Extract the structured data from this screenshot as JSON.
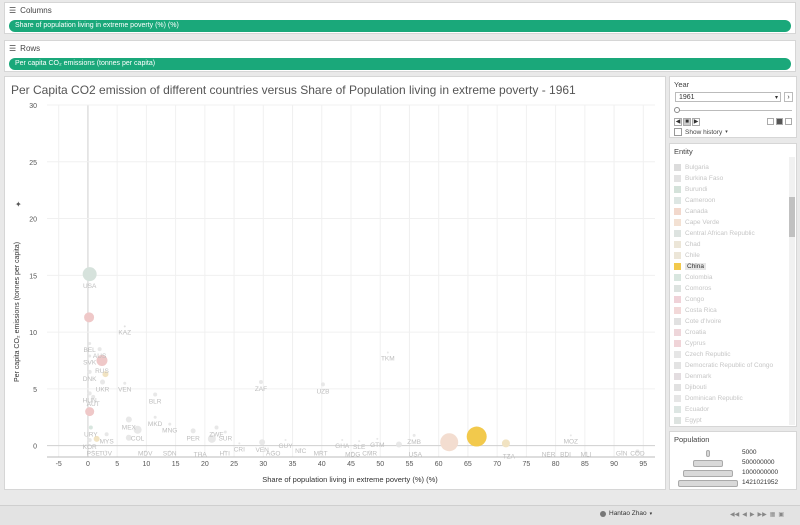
{
  "columns_shelf": {
    "label": "Columns",
    "pill": "Share of population living in extreme poverty (%) (%)"
  },
  "rows_shelf": {
    "label": "Rows",
    "pill": "Per capita CO₂ emissions (tonnes per capita)"
  },
  "view": {
    "title": "Per Capita CO2 emission of different countries versus Share of Population living in extreme poverty - 1961"
  },
  "year_panel": {
    "label": "Year",
    "value": "1961",
    "show_history": "Show history"
  },
  "entity_panel": {
    "label": "Entity",
    "items": [
      {
        "name": "Bulgaria",
        "color": "#dcdcdc"
      },
      {
        "name": "Burkina Faso",
        "color": "#e3e3e3"
      },
      {
        "name": "Burundi",
        "color": "#d4e2da"
      },
      {
        "name": "Cameroon",
        "color": "#dde6e3"
      },
      {
        "name": "Canada",
        "color": "#f2d8cc"
      },
      {
        "name": "Cape Verde",
        "color": "#f3e1d3"
      },
      {
        "name": "Central African Republic",
        "color": "#dde3e0"
      },
      {
        "name": "Chad",
        "color": "#ece6d8"
      },
      {
        "name": "Chile",
        "color": "#ece6d8"
      },
      {
        "name": "China",
        "color": "#f2c94c",
        "selected": true
      },
      {
        "name": "Colombia",
        "color": "#d8e6df"
      },
      {
        "name": "Comoros",
        "color": "#dde3e0"
      },
      {
        "name": "Congo",
        "color": "#f0d2d8"
      },
      {
        "name": "Costa Rica",
        "color": "#f2d8d8"
      },
      {
        "name": "Cote d'Ivoire",
        "color": "#e1e1e1"
      },
      {
        "name": "Croatia",
        "color": "#eed6da"
      },
      {
        "name": "Cyprus",
        "color": "#f0d4d8"
      },
      {
        "name": "Czech Republic",
        "color": "#e6e6e6"
      },
      {
        "name": "Democratic Republic of Congo",
        "color": "#e3e3e3"
      },
      {
        "name": "Denmark",
        "color": "#e3dde0"
      },
      {
        "name": "Djibouti",
        "color": "#e1e1e1"
      },
      {
        "name": "Dominican Republic",
        "color": "#e6e6e6"
      },
      {
        "name": "Ecuador",
        "color": "#dde6e3"
      },
      {
        "name": "Egypt",
        "color": "#dde3e0"
      }
    ]
  },
  "population_legend": {
    "label": "Population",
    "entries": [
      "5000",
      "500000000",
      "1000000000",
      "1421021952"
    ]
  },
  "status_bar": {
    "user": "Hantao Zhao"
  },
  "chart_data": {
    "type": "scatter",
    "title": "Per Capita CO2 emission of different countries versus Share of Population living in extreme poverty - 1961",
    "xlabel": "Share of population living in extreme poverty (%) (%)",
    "ylabel": "Per capita CO₂ emissions (tonnes per capita)",
    "xlim": [
      -7,
      97
    ],
    "ylim": [
      -1,
      30
    ],
    "xticks": [
      "-5",
      "0",
      "5",
      "10",
      "15",
      "20",
      "25",
      "30",
      "35",
      "40",
      "45",
      "50",
      "55",
      "60",
      "65",
      "70",
      "75",
      "80",
      "85",
      "90",
      "95"
    ],
    "yticks": [
      "0",
      "5",
      "10",
      "15",
      "20",
      "25",
      "30"
    ],
    "grid": true,
    "points": [
      {
        "label": "USA",
        "x": 0.3,
        "y": 15.1,
        "size": 7,
        "color": "#d6e2dc",
        "faded": false
      },
      {
        "label": "",
        "x": 0.2,
        "y": 11.3,
        "size": 5,
        "color": "#efc8c8",
        "faded": false
      },
      {
        "label": "KAZ",
        "x": 6.3,
        "y": 10.5,
        "size": 1,
        "color": "#dddddd",
        "faded": true
      },
      {
        "label": "AUS",
        "x": 2.0,
        "y": 8.5,
        "size": 2,
        "color": "#e6e6e6",
        "faded": true
      },
      {
        "label": "SVK",
        "x": 0.3,
        "y": 7.9,
        "size": 1.5,
        "color": "#e6e6e6",
        "faded": true
      },
      {
        "label": "BEL",
        "x": 0.3,
        "y": 9.0,
        "size": 1.5,
        "color": "#e6e6e6",
        "faded": true
      },
      {
        "label": "RUS",
        "x": 2.4,
        "y": 7.5,
        "size": 5.5,
        "color": "#efc8c8",
        "faded": false
      },
      {
        "label": "DNK",
        "x": 0.3,
        "y": 6.5,
        "size": 2,
        "color": "#e6e6e6",
        "faded": true
      },
      {
        "label": "",
        "x": 3.0,
        "y": 6.3,
        "size": 3,
        "color": "#f1e3c2",
        "faded": false
      },
      {
        "label": "UKR",
        "x": 2.5,
        "y": 5.6,
        "size": 2.5,
        "color": "#e6e6e6",
        "faded": true
      },
      {
        "label": "VEN",
        "x": 6.3,
        "y": 5.5,
        "size": 1.5,
        "color": "#e6e6e6",
        "faded": true
      },
      {
        "label": "HUN",
        "x": 0.3,
        "y": 4.6,
        "size": 2,
        "color": "#e6e6e6",
        "faded": true
      },
      {
        "label": "AUT",
        "x": 0.9,
        "y": 4.3,
        "size": 2,
        "color": "#e6e6e6",
        "faded": true
      },
      {
        "label": "ZAF",
        "x": 29.6,
        "y": 5.6,
        "size": 2,
        "color": "#e6e6e6",
        "faded": true
      },
      {
        "label": "UZB",
        "x": 40.2,
        "y": 5.4,
        "size": 2,
        "color": "#e6e6e6",
        "faded": true
      },
      {
        "label": "TKM",
        "x": 51.3,
        "y": 8.2,
        "size": 1,
        "color": "#e6e6e6",
        "faded": true
      },
      {
        "label": "BLR",
        "x": 11.5,
        "y": 4.5,
        "size": 2,
        "color": "#e6e6e6",
        "faded": true
      },
      {
        "label": "",
        "x": 0.3,
        "y": 3.0,
        "size": 4.5,
        "color": "#efc8c8",
        "faded": false
      },
      {
        "label": "MEX",
        "x": 7.0,
        "y": 2.3,
        "size": 3,
        "color": "#e6e6e6",
        "faded": true
      },
      {
        "label": "MKD",
        "x": 11.5,
        "y": 2.5,
        "size": 1.5,
        "color": "#e6e6e6",
        "faded": true
      },
      {
        "label": "ZWE",
        "x": 22.0,
        "y": 1.6,
        "size": 2,
        "color": "#e6e6e6",
        "faded": true
      },
      {
        "label": "MNG",
        "x": 14.0,
        "y": 1.9,
        "size": 1.5,
        "color": "#e6e6e6",
        "faded": true
      },
      {
        "label": "PER",
        "x": 18.0,
        "y": 1.3,
        "size": 2.5,
        "color": "#e6e6e6",
        "faded": true
      },
      {
        "label": "SUR",
        "x": 23.5,
        "y": 1.2,
        "size": 1.5,
        "color": "#e6e6e6",
        "faded": true
      },
      {
        "label": "URY",
        "x": 0.5,
        "y": 1.6,
        "size": 2,
        "color": "#d8e6df",
        "faded": false
      },
      {
        "label": "MYS",
        "x": 3.2,
        "y": 1.0,
        "size": 2,
        "color": "#e6e6e6",
        "faded": true
      },
      {
        "label": "COL",
        "x": 8.5,
        "y": 1.4,
        "size": 4,
        "color": "#e6e6e6",
        "faded": true
      },
      {
        "label": "KOR",
        "x": 0.3,
        "y": 0.5,
        "size": 2,
        "color": "#e6e6e6",
        "faded": true
      },
      {
        "label": "",
        "x": 1.5,
        "y": 0.6,
        "size": 3,
        "color": "#f1e3c2",
        "faded": false
      },
      {
        "label": "",
        "x": 7.0,
        "y": 0.7,
        "size": 3,
        "color": "#e6e6e6",
        "faded": true
      },
      {
        "label": "",
        "x": 21.2,
        "y": 0.6,
        "size": 4,
        "color": "#e6e6e6",
        "faded": true
      },
      {
        "label": "VEN",
        "x": 29.8,
        "y": 0.3,
        "size": 3,
        "color": "#e6e6e6",
        "faded": true
      },
      {
        "label": "GUY",
        "x": 33.8,
        "y": 0.5,
        "size": 1,
        "color": "#e6e6e6",
        "faded": true
      },
      {
        "label": "GHA",
        "x": 43.5,
        "y": 0.5,
        "size": 1,
        "color": "#e6e6e6",
        "faded": true
      },
      {
        "label": "SLE",
        "x": 46.4,
        "y": 0.4,
        "size": 1,
        "color": "#e6e6e6",
        "faded": true
      },
      {
        "label": "GTM",
        "x": 49.5,
        "y": 0.6,
        "size": 1,
        "color": "#e6e6e6",
        "faded": true
      },
      {
        "label": "ZMB",
        "x": 55.8,
        "y": 0.9,
        "size": 1.5,
        "color": "#e6e6e6",
        "faded": true
      },
      {
        "label": "",
        "x": 53.2,
        "y": 0.1,
        "size": 3,
        "color": "#e6e6e6",
        "faded": true
      },
      {
        "label": "",
        "x": 61.8,
        "y": 0.3,
        "size": 9,
        "color": "#f3ddd0",
        "faded": false
      },
      {
        "label": "",
        "x": 66.5,
        "y": 0.8,
        "size": 10,
        "color": "#f2c94c",
        "faded": false
      },
      {
        "label": "",
        "x": 71.5,
        "y": 0.2,
        "size": 4,
        "color": "#f1e3c2",
        "faded": false
      },
      {
        "label": "MOZ",
        "x": 82.6,
        "y": 0.9,
        "size": 1,
        "color": "#e6e6e6",
        "faded": true
      },
      {
        "label": "PSE",
        "x": 0.9,
        "y": -0.5,
        "size": 1,
        "color": "#e6e6e6",
        "faded": true
      },
      {
        "label": "TUV",
        "x": 3.0,
        "y": -0.5,
        "size": 1,
        "color": "#e6e6e6",
        "faded": true
      },
      {
        "label": "MDV",
        "x": 9.8,
        "y": -0.5,
        "size": 1,
        "color": "#e6e6e6",
        "faded": true
      },
      {
        "label": "SDN",
        "x": 14.0,
        "y": -0.5,
        "size": 1,
        "color": "#e6e6e6",
        "faded": true
      },
      {
        "label": "THA",
        "x": 19.2,
        "y": -0.6,
        "size": 1,
        "color": "#e6e6e6",
        "faded": true
      },
      {
        "label": "HTI",
        "x": 23.4,
        "y": -0.5,
        "size": 1,
        "color": "#e6e6e6",
        "faded": true
      },
      {
        "label": "CRI",
        "x": 25.9,
        "y": 0.2,
        "size": 1,
        "color": "#e6e6e6",
        "faded": true
      },
      {
        "label": "AGO",
        "x": 31.7,
        "y": -0.5,
        "size": 1,
        "color": "#e6e6e6",
        "faded": true
      },
      {
        "label": "NIC",
        "x": 36.4,
        "y": -0.3,
        "size": 1,
        "color": "#e6e6e6",
        "faded": true
      },
      {
        "label": "MRT",
        "x": 39.8,
        "y": -0.5,
        "size": 1,
        "color": "#e6e6e6",
        "faded": true
      },
      {
        "label": "MDG",
        "x": 45.3,
        "y": -0.6,
        "size": 1,
        "color": "#e6e6e6",
        "faded": true
      },
      {
        "label": "CMR",
        "x": 48.2,
        "y": -0.5,
        "size": 1,
        "color": "#e6e6e6",
        "faded": true
      },
      {
        "label": "USA",
        "x": 56.0,
        "y": -0.6,
        "size": 1,
        "color": "#e6e6e6",
        "faded": true
      },
      {
        "label": "TZA",
        "x": 72.0,
        "y": -0.8,
        "size": 1,
        "color": "#e6e6e6",
        "faded": true
      },
      {
        "label": "NER",
        "x": 78.8,
        "y": -0.6,
        "size": 1,
        "color": "#e6e6e6",
        "faded": true
      },
      {
        "label": "BDI",
        "x": 81.7,
        "y": -0.6,
        "size": 1,
        "color": "#e6e6e6",
        "faded": true
      },
      {
        "label": "MLI",
        "x": 85.2,
        "y": -0.6,
        "size": 1,
        "color": "#e6e6e6",
        "faded": true
      },
      {
        "label": "GIN",
        "x": 91.3,
        "y": -0.5,
        "size": 1,
        "color": "#e6e6e6",
        "faded": true
      },
      {
        "label": "COD",
        "x": 94.0,
        "y": -0.5,
        "size": 2,
        "color": "#e6e6e6",
        "faded": true
      }
    ]
  }
}
